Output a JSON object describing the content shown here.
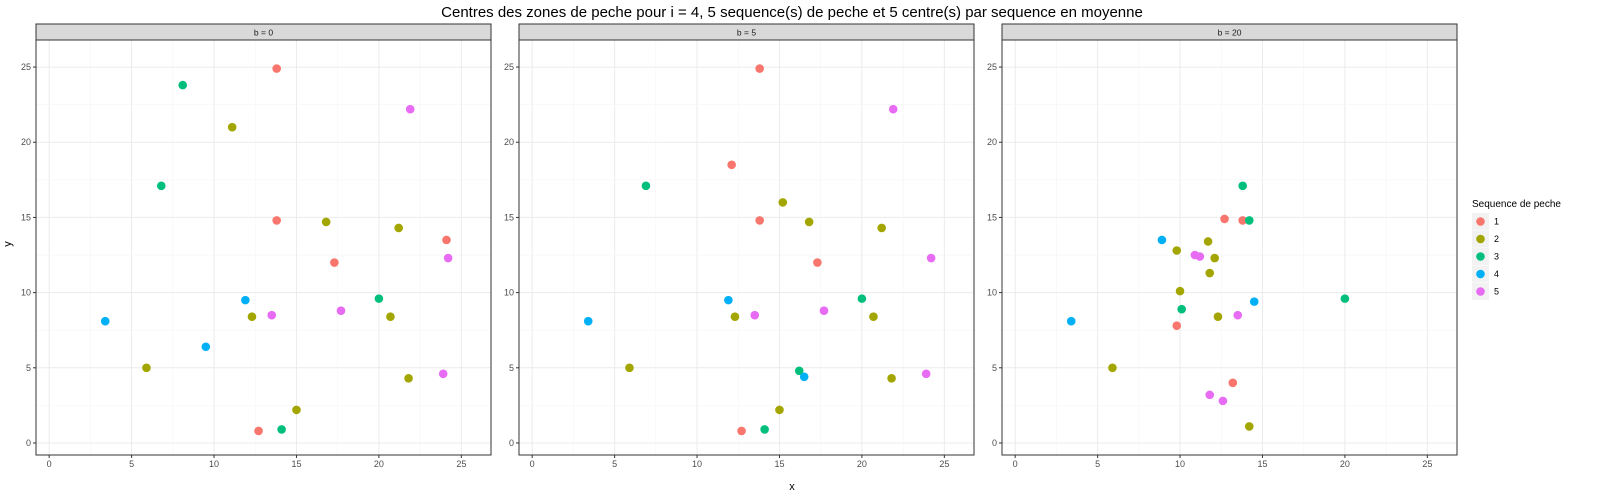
{
  "chart_data": {
    "type": "scatter",
    "title": "Centres des zones de peche pour i = 4, 5 sequence(s) de peche et 5 centre(s) par sequence en moyenne",
    "xlabel": "x",
    "ylabel": "y",
    "xlim": [
      -0.8,
      26.8
    ],
    "ylim": [
      -0.8,
      26.8
    ],
    "xticks": [
      0,
      5,
      10,
      15,
      20,
      25
    ],
    "yticks": [
      0,
      5,
      10,
      15,
      20,
      25
    ],
    "grid": true,
    "legend": {
      "title": "Sequence de peche",
      "placement": "right",
      "entries": [
        {
          "label": "1",
          "color": "#F8766D"
        },
        {
          "label": "2",
          "color": "#A3A500"
        },
        {
          "label": "3",
          "color": "#00BF7D"
        },
        {
          "label": "4",
          "color": "#00B0F6"
        },
        {
          "label": "5",
          "color": "#E76BF3"
        }
      ]
    },
    "facets": [
      {
        "label": "b = 0",
        "points": [
          {
            "x": 13.8,
            "y": 24.9,
            "seq": "1"
          },
          {
            "x": 13.8,
            "y": 14.8,
            "seq": "1"
          },
          {
            "x": 17.3,
            "y": 12.0,
            "seq": "1"
          },
          {
            "x": 24.1,
            "y": 13.5,
            "seq": "1"
          },
          {
            "x": 12.7,
            "y": 0.8,
            "seq": "1"
          },
          {
            "x": 11.1,
            "y": 21.0,
            "seq": "2"
          },
          {
            "x": 16.8,
            "y": 14.7,
            "seq": "2"
          },
          {
            "x": 21.2,
            "y": 14.3,
            "seq": "2"
          },
          {
            "x": 12.3,
            "y": 8.4,
            "seq": "2"
          },
          {
            "x": 20.7,
            "y": 8.4,
            "seq": "2"
          },
          {
            "x": 5.9,
            "y": 5.0,
            "seq": "2"
          },
          {
            "x": 21.8,
            "y": 4.3,
            "seq": "2"
          },
          {
            "x": 15.0,
            "y": 2.2,
            "seq": "2"
          },
          {
            "x": 8.1,
            "y": 23.8,
            "seq": "3"
          },
          {
            "x": 6.8,
            "y": 17.1,
            "seq": "3"
          },
          {
            "x": 20.0,
            "y": 9.6,
            "seq": "3"
          },
          {
            "x": 14.1,
            "y": 0.9,
            "seq": "3"
          },
          {
            "x": 11.9,
            "y": 9.5,
            "seq": "4"
          },
          {
            "x": 3.4,
            "y": 8.1,
            "seq": "4"
          },
          {
            "x": 9.5,
            "y": 6.4,
            "seq": "4"
          },
          {
            "x": 21.9,
            "y": 22.2,
            "seq": "5"
          },
          {
            "x": 24.2,
            "y": 12.3,
            "seq": "5"
          },
          {
            "x": 13.5,
            "y": 8.5,
            "seq": "5"
          },
          {
            "x": 17.7,
            "y": 8.8,
            "seq": "5"
          },
          {
            "x": 23.9,
            "y": 4.6,
            "seq": "5"
          }
        ]
      },
      {
        "label": "b = 5",
        "points": [
          {
            "x": 13.8,
            "y": 24.9,
            "seq": "1"
          },
          {
            "x": 12.1,
            "y": 18.5,
            "seq": "1"
          },
          {
            "x": 13.8,
            "y": 14.8,
            "seq": "1"
          },
          {
            "x": 17.3,
            "y": 12.0,
            "seq": "1"
          },
          {
            "x": 12.7,
            "y": 0.8,
            "seq": "1"
          },
          {
            "x": 15.2,
            "y": 16.0,
            "seq": "2"
          },
          {
            "x": 16.8,
            "y": 14.7,
            "seq": "2"
          },
          {
            "x": 21.2,
            "y": 14.3,
            "seq": "2"
          },
          {
            "x": 12.3,
            "y": 8.4,
            "seq": "2"
          },
          {
            "x": 20.7,
            "y": 8.4,
            "seq": "2"
          },
          {
            "x": 5.9,
            "y": 5.0,
            "seq": "2"
          },
          {
            "x": 21.8,
            "y": 4.3,
            "seq": "2"
          },
          {
            "x": 15.0,
            "y": 2.2,
            "seq": "2"
          },
          {
            "x": 6.9,
            "y": 17.1,
            "seq": "3"
          },
          {
            "x": 20.0,
            "y": 9.6,
            "seq": "3"
          },
          {
            "x": 16.2,
            "y": 4.8,
            "seq": "3"
          },
          {
            "x": 14.1,
            "y": 0.9,
            "seq": "3"
          },
          {
            "x": 11.9,
            "y": 9.5,
            "seq": "4"
          },
          {
            "x": 3.4,
            "y": 8.1,
            "seq": "4"
          },
          {
            "x": 16.5,
            "y": 4.4,
            "seq": "4"
          },
          {
            "x": 21.9,
            "y": 22.2,
            "seq": "5"
          },
          {
            "x": 24.2,
            "y": 12.3,
            "seq": "5"
          },
          {
            "x": 13.5,
            "y": 8.5,
            "seq": "5"
          },
          {
            "x": 17.7,
            "y": 8.8,
            "seq": "5"
          },
          {
            "x": 23.9,
            "y": 4.6,
            "seq": "5"
          }
        ]
      },
      {
        "label": "b = 20",
        "points": [
          {
            "x": 12.7,
            "y": 14.9,
            "seq": "1"
          },
          {
            "x": 13.8,
            "y": 14.8,
            "seq": "1"
          },
          {
            "x": 9.8,
            "y": 7.8,
            "seq": "1"
          },
          {
            "x": 13.2,
            "y": 4.0,
            "seq": "1"
          },
          {
            "x": 9.8,
            "y": 12.8,
            "seq": "2"
          },
          {
            "x": 11.7,
            "y": 13.4,
            "seq": "2"
          },
          {
            "x": 12.1,
            "y": 12.3,
            "seq": "2"
          },
          {
            "x": 11.8,
            "y": 11.3,
            "seq": "2"
          },
          {
            "x": 10.0,
            "y": 10.1,
            "seq": "2"
          },
          {
            "x": 12.3,
            "y": 8.4,
            "seq": "2"
          },
          {
            "x": 5.9,
            "y": 5.0,
            "seq": "2"
          },
          {
            "x": 14.2,
            "y": 1.1,
            "seq": "2"
          },
          {
            "x": 13.8,
            "y": 17.1,
            "seq": "3"
          },
          {
            "x": 14.2,
            "y": 14.8,
            "seq": "3"
          },
          {
            "x": 10.1,
            "y": 8.9,
            "seq": "3"
          },
          {
            "x": 20.0,
            "y": 9.6,
            "seq": "3"
          },
          {
            "x": 8.9,
            "y": 13.5,
            "seq": "4"
          },
          {
            "x": 3.4,
            "y": 8.1,
            "seq": "4"
          },
          {
            "x": 14.5,
            "y": 9.4,
            "seq": "4"
          },
          {
            "x": 10.9,
            "y": 12.5,
            "seq": "5"
          },
          {
            "x": 11.2,
            "y": 12.4,
            "seq": "5"
          },
          {
            "x": 13.5,
            "y": 8.5,
            "seq": "5"
          },
          {
            "x": 11.8,
            "y": 3.2,
            "seq": "5"
          },
          {
            "x": 12.6,
            "y": 2.8,
            "seq": "5"
          }
        ]
      }
    ]
  }
}
